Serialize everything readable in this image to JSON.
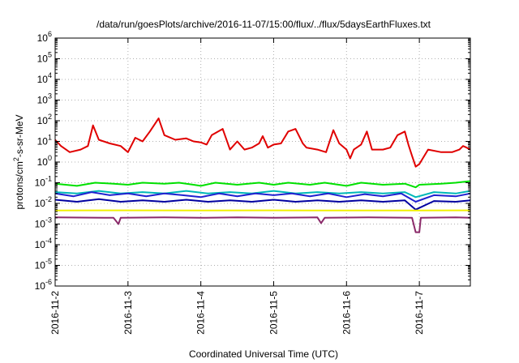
{
  "chart_data": {
    "type": "line",
    "title": "/data/run/goesPlots/archive/2016-11-07/15:00/flux/../flux/5daysEarthFluxes.txt",
    "xlabel": "Coordinated Universal Time (UTC)",
    "ylabel": {
      "prefix": "protons/cm",
      "sup": "2",
      "suffix": "-s-sr-MeV"
    },
    "yscale": "log",
    "ylim_exp": [
      -6,
      6
    ],
    "ytick_exponents": [
      -6,
      -5,
      -4,
      -3,
      -2,
      -1,
      0,
      1,
      2,
      3,
      4,
      5,
      6
    ],
    "ytick_base": "10",
    "xlim_days": [
      0,
      5.7
    ],
    "xticks": [
      {
        "day": 0,
        "label": "2016-11-2"
      },
      {
        "day": 1,
        "label": "2016-11-3"
      },
      {
        "day": 2,
        "label": "2016-11-4"
      },
      {
        "day": 3,
        "label": "2016-11-5"
      },
      {
        "day": 4,
        "label": "2016-11-6"
      },
      {
        "day": 5,
        "label": "2016-11-7"
      }
    ],
    "grid": true,
    "series": [
      {
        "color": "#e00000",
        "width": 2,
        "points": [
          [
            0,
            12
          ],
          [
            0.08,
            6
          ],
          [
            0.2,
            3
          ],
          [
            0.35,
            4
          ],
          [
            0.45,
            6
          ],
          [
            0.52,
            60
          ],
          [
            0.6,
            12
          ],
          [
            0.75,
            8
          ],
          [
            0.9,
            6
          ],
          [
            1,
            3
          ],
          [
            1.1,
            15
          ],
          [
            1.2,
            10
          ],
          [
            1.3,
            30
          ],
          [
            1.42,
            130
          ],
          [
            1.5,
            20
          ],
          [
            1.65,
            12
          ],
          [
            1.8,
            14
          ],
          [
            1.9,
            10
          ],
          [
            2,
            9
          ],
          [
            2.08,
            7
          ],
          [
            2.15,
            20
          ],
          [
            2.3,
            40
          ],
          [
            2.4,
            4
          ],
          [
            2.5,
            10
          ],
          [
            2.6,
            4
          ],
          [
            2.7,
            5
          ],
          [
            2.8,
            8
          ],
          [
            2.85,
            18
          ],
          [
            2.92,
            5
          ],
          [
            3,
            7
          ],
          [
            3.1,
            8
          ],
          [
            3.2,
            30
          ],
          [
            3.3,
            40
          ],
          [
            3.4,
            8
          ],
          [
            3.45,
            5
          ],
          [
            3.6,
            4
          ],
          [
            3.72,
            3
          ],
          [
            3.82,
            35
          ],
          [
            3.9,
            8
          ],
          [
            4,
            4
          ],
          [
            4.05,
            1.5
          ],
          [
            4.1,
            4
          ],
          [
            4.2,
            7
          ],
          [
            4.28,
            30
          ],
          [
            4.35,
            4
          ],
          [
            4.5,
            4
          ],
          [
            4.6,
            5
          ],
          [
            4.7,
            20
          ],
          [
            4.8,
            30
          ],
          [
            4.85,
            7
          ],
          [
            4.9,
            2
          ],
          [
            4.95,
            0.6
          ],
          [
            5,
            0.8
          ],
          [
            5.12,
            4
          ],
          [
            5.3,
            3
          ],
          [
            5.45,
            3
          ],
          [
            5.55,
            4
          ],
          [
            5.6,
            6
          ],
          [
            5.65,
            5
          ],
          [
            5.7,
            4
          ]
        ]
      },
      {
        "color": "#00e000",
        "width": 2,
        "points": [
          [
            0,
            0.09
          ],
          [
            0.3,
            0.07
          ],
          [
            0.55,
            0.1
          ],
          [
            0.8,
            0.09
          ],
          [
            1,
            0.08
          ],
          [
            1.2,
            0.1
          ],
          [
            1.5,
            0.09
          ],
          [
            1.7,
            0.1
          ],
          [
            1.9,
            0.08
          ],
          [
            2,
            0.07
          ],
          [
            2.2,
            0.1
          ],
          [
            2.5,
            0.08
          ],
          [
            2.8,
            0.1
          ],
          [
            3,
            0.08
          ],
          [
            3.2,
            0.1
          ],
          [
            3.5,
            0.08
          ],
          [
            3.7,
            0.1
          ],
          [
            4,
            0.07
          ],
          [
            4.2,
            0.1
          ],
          [
            4.5,
            0.08
          ],
          [
            4.8,
            0.09
          ],
          [
            4.95,
            0.06
          ],
          [
            5,
            0.08
          ],
          [
            5.3,
            0.09
          ],
          [
            5.5,
            0.1
          ],
          [
            5.7,
            0.12
          ]
        ]
      },
      {
        "color": "#00b8b8",
        "width": 2,
        "points": [
          [
            0,
            0.035
          ],
          [
            0.3,
            0.03
          ],
          [
            0.6,
            0.04
          ],
          [
            0.9,
            0.03
          ],
          [
            1.2,
            0.035
          ],
          [
            1.5,
            0.03
          ],
          [
            1.8,
            0.04
          ],
          [
            2.1,
            0.03
          ],
          [
            2.4,
            0.035
          ],
          [
            2.7,
            0.03
          ],
          [
            3,
            0.04
          ],
          [
            3.3,
            0.03
          ],
          [
            3.6,
            0.035
          ],
          [
            3.9,
            0.03
          ],
          [
            4.2,
            0.035
          ],
          [
            4.5,
            0.03
          ],
          [
            4.8,
            0.035
          ],
          [
            4.95,
            0.02
          ],
          [
            5.2,
            0.035
          ],
          [
            5.5,
            0.03
          ],
          [
            5.7,
            0.04
          ]
        ]
      },
      {
        "color": "#2020d0",
        "width": 2,
        "points": [
          [
            0,
            0.03
          ],
          [
            0.25,
            0.022
          ],
          [
            0.5,
            0.035
          ],
          [
            0.75,
            0.025
          ],
          [
            1,
            0.03
          ],
          [
            1.25,
            0.022
          ],
          [
            1.5,
            0.03
          ],
          [
            1.75,
            0.025
          ],
          [
            2,
            0.02
          ],
          [
            2.25,
            0.03
          ],
          [
            2.5,
            0.022
          ],
          [
            2.75,
            0.03
          ],
          [
            3,
            0.025
          ],
          [
            3.25,
            0.03
          ],
          [
            3.5,
            0.022
          ],
          [
            3.75,
            0.03
          ],
          [
            4,
            0.02
          ],
          [
            4.25,
            0.028
          ],
          [
            4.5,
            0.022
          ],
          [
            4.75,
            0.03
          ],
          [
            4.95,
            0.012
          ],
          [
            5.2,
            0.025
          ],
          [
            5.5,
            0.022
          ],
          [
            5.7,
            0.03
          ]
        ]
      },
      {
        "color": "#0000a0",
        "width": 2,
        "points": [
          [
            0,
            0.015
          ],
          [
            0.3,
            0.012
          ],
          [
            0.6,
            0.016
          ],
          [
            0.9,
            0.012
          ],
          [
            1.2,
            0.014
          ],
          [
            1.5,
            0.012
          ],
          [
            1.8,
            0.015
          ],
          [
            2.1,
            0.012
          ],
          [
            2.4,
            0.014
          ],
          [
            2.7,
            0.012
          ],
          [
            3,
            0.015
          ],
          [
            3.3,
            0.012
          ],
          [
            3.6,
            0.014
          ],
          [
            3.9,
            0.012
          ],
          [
            4.2,
            0.014
          ],
          [
            4.5,
            0.012
          ],
          [
            4.8,
            0.014
          ],
          [
            4.95,
            0.005
          ],
          [
            5.2,
            0.013
          ],
          [
            5.5,
            0.012
          ],
          [
            5.7,
            0.014
          ]
        ]
      },
      {
        "color": "#f0f000",
        "width": 2,
        "points": [
          [
            0,
            0.0045
          ],
          [
            1,
            0.0046
          ],
          [
            2,
            0.0045
          ],
          [
            3,
            0.0046
          ],
          [
            4,
            0.0045
          ],
          [
            5,
            0.0045
          ],
          [
            5.7,
            0.0046
          ]
        ]
      },
      {
        "color": "#8b2a6a",
        "width": 2,
        "points": [
          [
            0,
            0.0021
          ],
          [
            0.8,
            0.002
          ],
          [
            0.87,
            0.001
          ],
          [
            0.9,
            0.002
          ],
          [
            1.5,
            0.0021
          ],
          [
            2,
            0.002
          ],
          [
            2.5,
            0.0021
          ],
          [
            3,
            0.002
          ],
          [
            3.6,
            0.0021
          ],
          [
            3.65,
            0.0011
          ],
          [
            3.7,
            0.002
          ],
          [
            4.3,
            0.0021
          ],
          [
            4.9,
            0.002
          ],
          [
            4.95,
            0.0004
          ],
          [
            5,
            0.0004
          ],
          [
            5.02,
            0.002
          ],
          [
            5.5,
            0.0021
          ],
          [
            5.7,
            0.002
          ]
        ]
      }
    ]
  }
}
